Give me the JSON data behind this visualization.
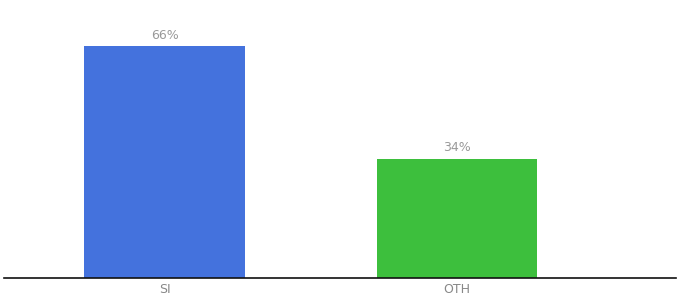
{
  "categories": [
    "SI",
    "OTH"
  ],
  "values": [
    66,
    34
  ],
  "bar_colors": [
    "#4472dd",
    "#3dbf3d"
  ],
  "value_labels": [
    "66%",
    "34%"
  ],
  "background_color": "#ffffff",
  "bar_width": 0.55,
  "ylim": [
    0,
    78
  ],
  "xlabel_fontsize": 9,
  "value_fontsize": 9,
  "label_color": "#999999",
  "tick_label_color": "#888888",
  "spine_color": "#111111"
}
